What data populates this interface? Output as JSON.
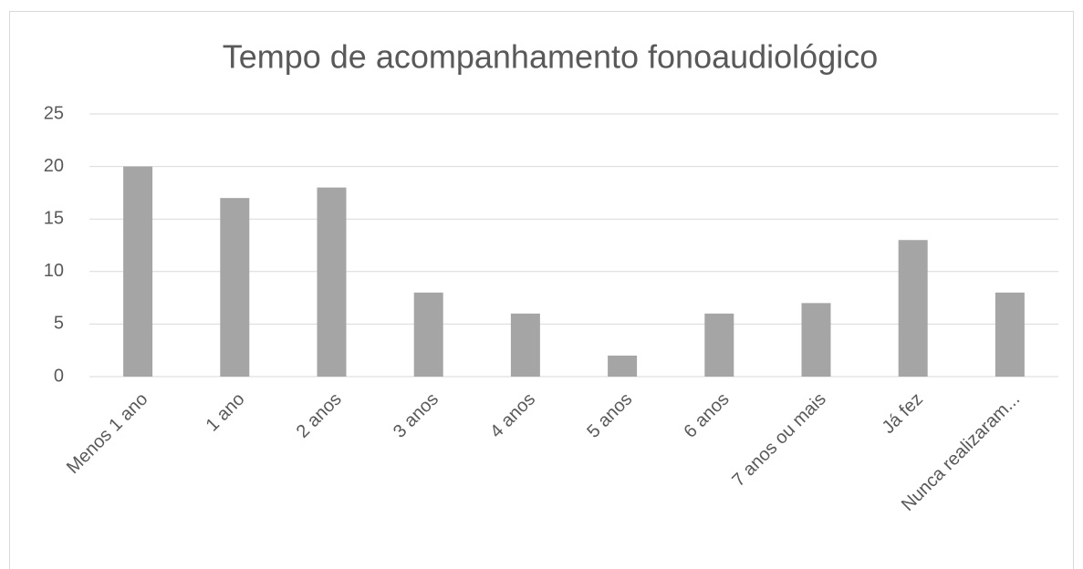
{
  "chart_data": {
    "type": "bar",
    "title": "Tempo de acompanhamento fonoaudiológico",
    "categories": [
      "Menos 1 ano",
      "1 ano",
      "2 anos",
      "3 anos",
      "4 anos",
      "5 anos",
      "6 anos",
      "7 anos ou mais",
      "Já fez",
      "Nunca realizaram..."
    ],
    "values": [
      20,
      17,
      18,
      8,
      6,
      2,
      6,
      7,
      13,
      8
    ],
    "color": "#a5a5a5",
    "ylim": [
      0,
      25
    ],
    "yticks": [
      0,
      5,
      10,
      15,
      20,
      25
    ],
    "grid": true
  }
}
